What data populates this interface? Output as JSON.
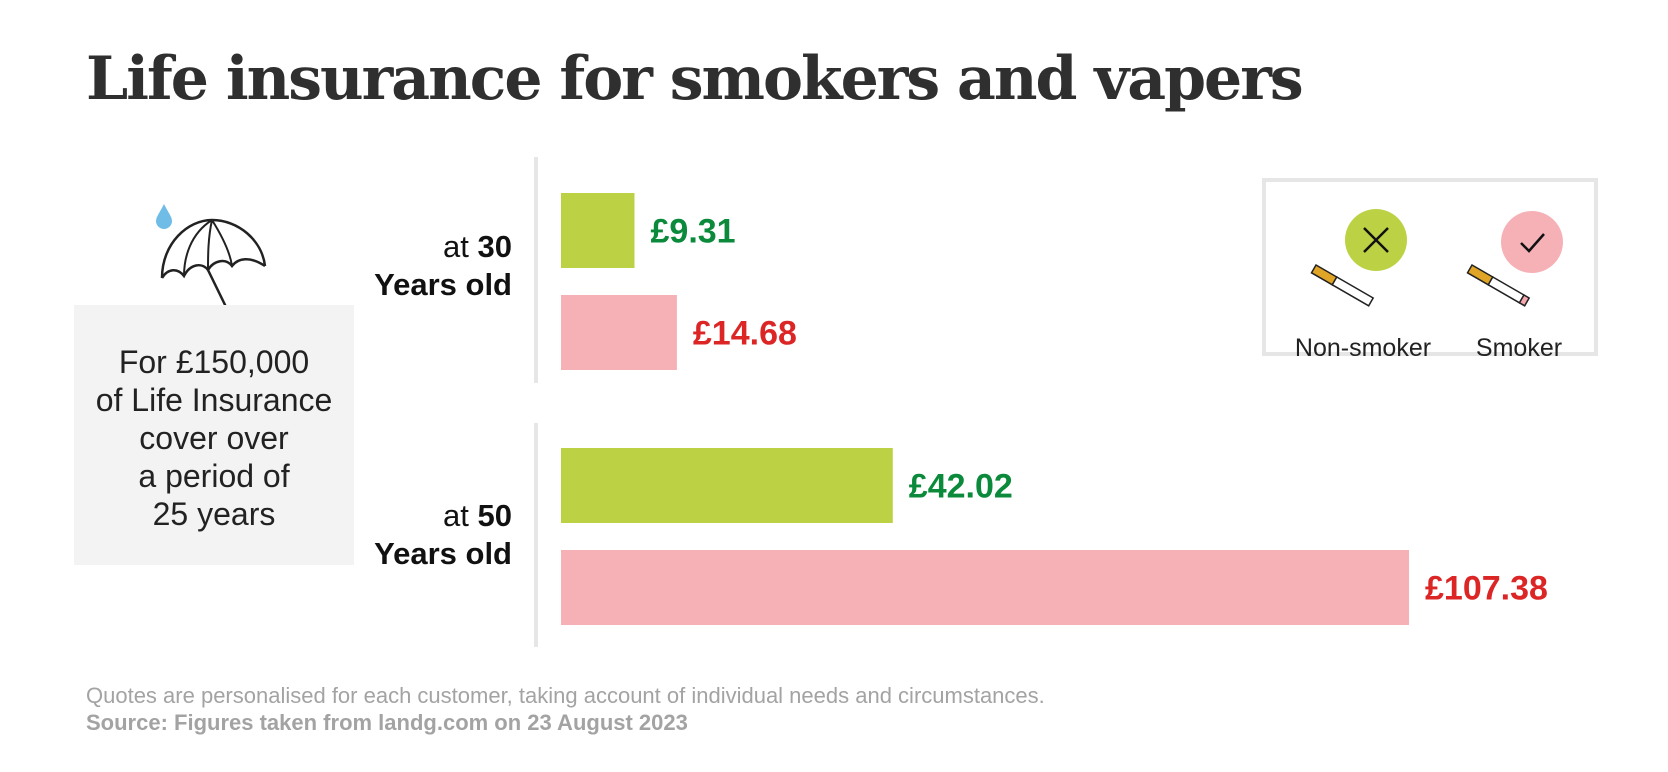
{
  "title": "Life insurance for smokers and vapers",
  "info_box": {
    "icon": "umbrella-with-raindrop-icon",
    "text": "For £150,000\nof Life Insurance\ncover over\na period of\n25 years"
  },
  "age_groups": [
    {
      "prefix": "at",
      "number": "30",
      "unit": "Years old"
    },
    {
      "prefix": "at",
      "number": "50",
      "unit": "Years old"
    }
  ],
  "legend": {
    "items": [
      {
        "label": "Non-smoker",
        "color": "#bcd244",
        "icon": "cross-icon"
      },
      {
        "label": "Smoker",
        "color": "#f6b1b6",
        "icon": "check-icon"
      }
    ]
  },
  "footnote": "Quotes are personalised for each customer, taking account of individual needs and circumstances.",
  "source": "Source: Figures taken from landg.com on 23 August 2023",
  "chart_data": {
    "type": "bar",
    "orientation": "horizontal",
    "title": "Life insurance for smokers and vapers",
    "categories": [
      "at 30 Years old",
      "at 50 Years old"
    ],
    "series": [
      {
        "name": "Non-smoker",
        "color": "#bcd244",
        "label_color": "#0b8a3c",
        "values": [
          9.31,
          42.02
        ],
        "labels": [
          "£9.31",
          "£42.02"
        ]
      },
      {
        "name": "Smoker",
        "color": "#f6b1b6",
        "label_color": "#dc2626",
        "values": [
          14.68,
          107.38
        ],
        "labels": [
          "£14.68",
          "£107.38"
        ]
      }
    ],
    "xlim": [
      0,
      107.38
    ],
    "grid": false,
    "legend_position": "top-right"
  }
}
